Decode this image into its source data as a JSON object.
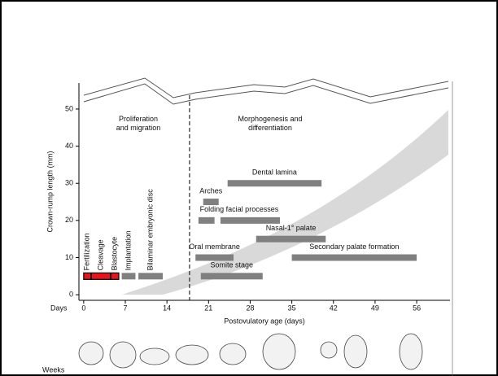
{
  "chart_data": {
    "type": "gantt",
    "section_titles": [
      "Proliferation\nand migration",
      "Morphogenesis and\ndifferentiation"
    ],
    "x_label": "Postovulatory age (days)",
    "x_prefix": "Days",
    "y_label": "Crown-rump length (mm)",
    "weeks_label": "Weeks",
    "xlim": [
      -0.8,
      61.6
    ],
    "xticks": [
      0,
      7,
      14,
      21,
      28,
      35,
      42,
      49,
      56
    ],
    "ylim": [
      -1.5,
      57
    ],
    "yticks": [
      0,
      10,
      20,
      30,
      40,
      50
    ],
    "divider_x": 17.8,
    "tasks": [
      {
        "label": "Fertilization",
        "y": 5,
        "segments": [
          [
            0,
            1.2
          ]
        ],
        "color": "#e8141c",
        "rotated": true
      },
      {
        "label": "Cleavage",
        "y": 5,
        "segments": [
          [
            1.3,
            4.5
          ]
        ],
        "color": "#e8141c",
        "rotated": true
      },
      {
        "label": "Blastocyte",
        "y": 5,
        "segments": [
          [
            4.6,
            5.9
          ]
        ],
        "color": "#e8141c",
        "rotated": true
      },
      {
        "label": "Implantation",
        "y": 5,
        "segments": [
          [
            6.4,
            8.7
          ]
        ],
        "color": "#808080",
        "rotated": true
      },
      {
        "label": "Bilaminar embryonic disc",
        "y": 5,
        "segments": [
          [
            9.2,
            13.3
          ]
        ],
        "color": "#808080",
        "rotated": true
      },
      {
        "label": "Somite stage",
        "y": 5,
        "segments": [
          [
            19.7,
            30.1
          ]
        ],
        "color": "#808080",
        "rotated": false
      },
      {
        "label": "Oral membrane",
        "y": 10,
        "segments": [
          [
            18.8,
            25.2
          ]
        ],
        "color": "#808080",
        "rotated": false
      },
      {
        "label": "Secondary palate formation",
        "y": 10,
        "segments": [
          [
            35,
            56
          ]
        ],
        "color": "#808080",
        "rotated": false
      },
      {
        "label": "Nasal-1° palate",
        "y": 15,
        "segments": [
          [
            29,
            40.7
          ]
        ],
        "color": "#808080",
        "rotated": false
      },
      {
        "label": "Folding facial processes",
        "y": 20,
        "segments": [
          [
            19.3,
            22
          ],
          [
            23,
            33
          ]
        ],
        "color": "#808080",
        "rotated": false
      },
      {
        "label": "Arches",
        "y": 25,
        "segments": [
          [
            20.1,
            22.7
          ]
        ],
        "color": "#808080",
        "rotated": false
      },
      {
        "label": "Dental lamina",
        "y": 30,
        "segments": [
          [
            24.2,
            40
          ]
        ],
        "color": "#808080",
        "rotated": false
      }
    ]
  }
}
